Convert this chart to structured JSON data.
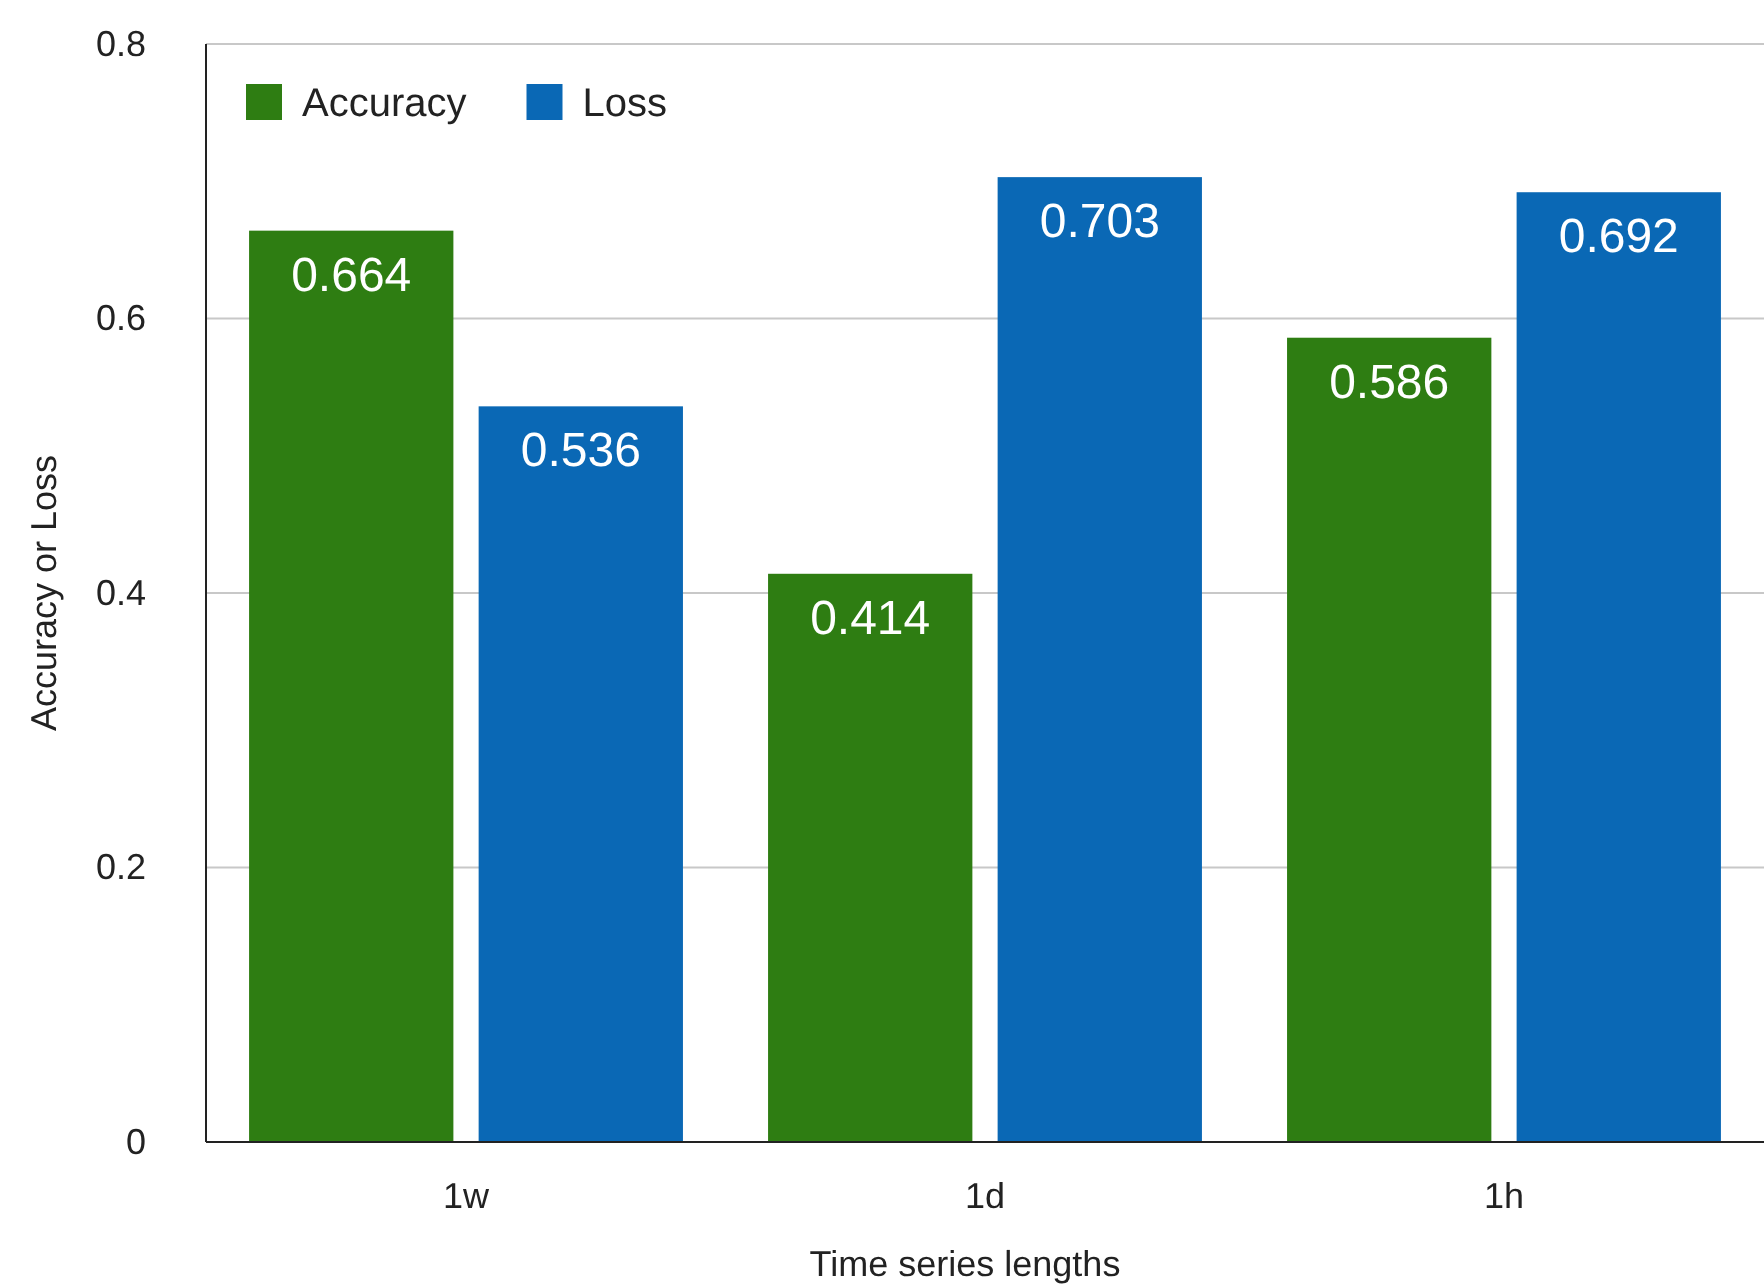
{
  "chart_data": {
    "type": "bar",
    "xlabel": "Time series lengths",
    "ylabel": "Accuracy or Loss",
    "categories": [
      "1w",
      "1d",
      "1h"
    ],
    "series": [
      {
        "name": "Accuracy",
        "color": "#2e7d12",
        "values": [
          0.664,
          0.414,
          0.586
        ]
      },
      {
        "name": "Loss",
        "color": "#0a68b5",
        "values": [
          0.536,
          0.703,
          0.692
        ]
      }
    ],
    "ylim": [
      0,
      0.8
    ],
    "yticks": [
      0,
      0.2,
      0.4,
      0.6,
      0.8
    ],
    "grid": "y",
    "legend": "top left",
    "data_labels": true
  }
}
